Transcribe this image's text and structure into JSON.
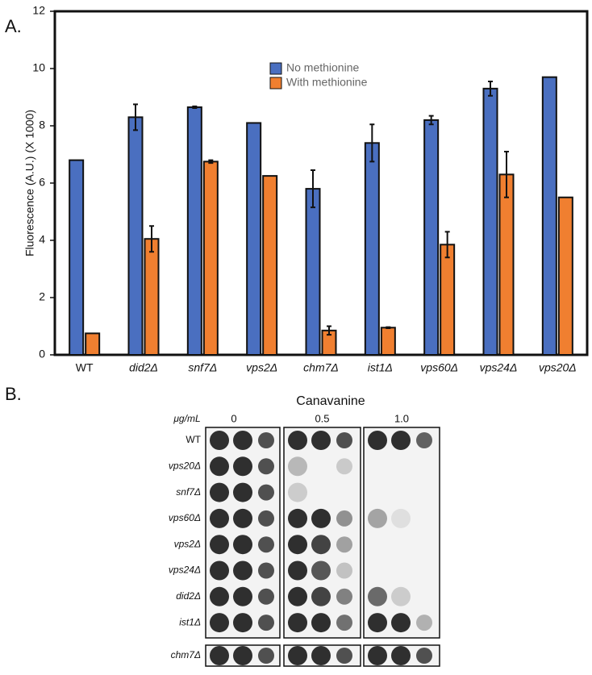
{
  "chart_data": {
    "type": "bar",
    "panel_label": "A.",
    "ylabel": "Fluorescence (A.U.) (X 1000)",
    "categories": [
      "WT",
      "did2Δ",
      "snf7Δ",
      "vps2Δ",
      "chm7Δ",
      "ist1Δ",
      "vps60Δ",
      "vps24Δ",
      "vps20Δ"
    ],
    "series": [
      {
        "name": "No methionine",
        "color": "#4a6fc0",
        "values": [
          6.8,
          8.3,
          8.65,
          8.1,
          5.8,
          7.4,
          8.2,
          9.3,
          9.7
        ],
        "errors": [
          null,
          0.45,
          0.03,
          null,
          0.65,
          0.65,
          0.15,
          0.25,
          null
        ]
      },
      {
        "name": "With methionine",
        "color": "#f07f30",
        "values": [
          0.75,
          4.05,
          6.75,
          6.25,
          0.85,
          0.95,
          3.85,
          6.3,
          5.5
        ],
        "errors": [
          null,
          0.45,
          0.05,
          null,
          0.15,
          0.02,
          0.45,
          0.8,
          null
        ]
      }
    ],
    "ylim": [
      0,
      12
    ],
    "yticks": [
      0,
      2,
      4,
      6,
      8,
      10,
      12
    ],
    "grid": false,
    "legend": "top"
  },
  "spot_assay": {
    "panel_label": "B.",
    "title": "Canavanine",
    "unit_label": "μg/mL",
    "concentrations": [
      "0",
      "0.5",
      "1.0"
    ],
    "strains": [
      "WT",
      "vps20Δ",
      "snf7Δ",
      "vps60Δ",
      "vps2Δ",
      "vps24Δ",
      "did2Δ",
      "ist1Δ"
    ],
    "separate_strain": "chm7Δ"
  }
}
